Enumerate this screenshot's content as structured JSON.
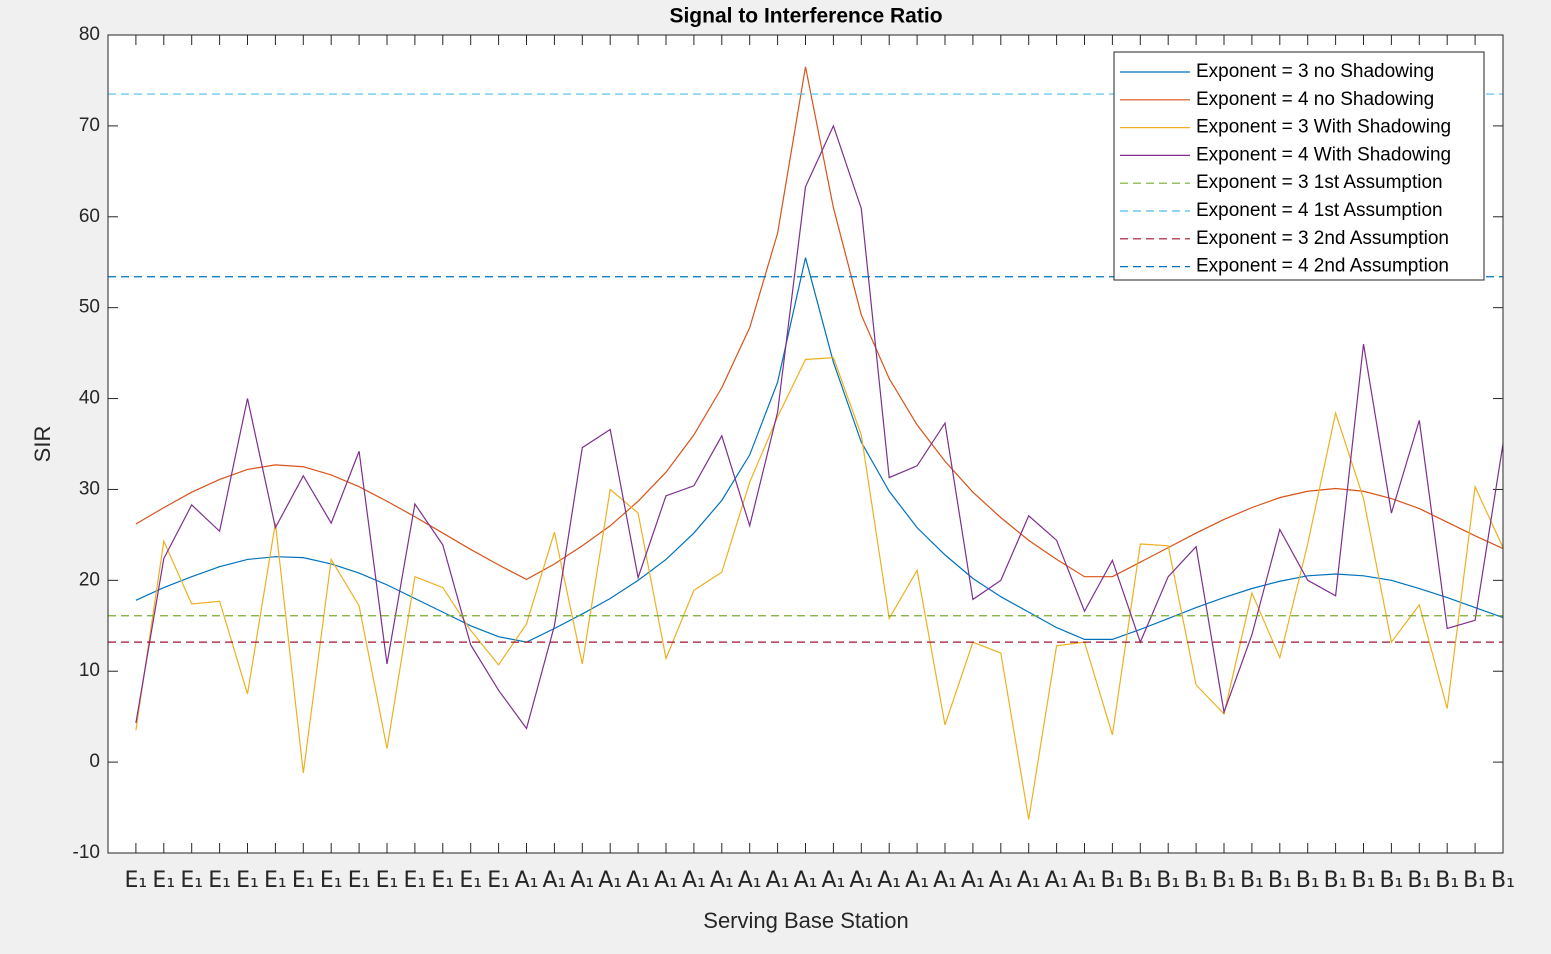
{
  "chart_data": {
    "type": "line",
    "title": "Signal to Interference Ratio",
    "xlabel": "Serving Base Station",
    "ylabel": "SIR",
    "categories": [
      "E₁",
      "E₁",
      "E₁",
      "E₁",
      "E₁",
      "E₁",
      "E₁",
      "E₁",
      "E₁",
      "E₁",
      "E₁",
      "E₁",
      "E₁",
      "E₁",
      "A₁",
      "A₁",
      "A₁",
      "A₁",
      "A₁",
      "A₁",
      "A₁",
      "A₁",
      "A₁",
      "A₁",
      "A₁",
      "A₁",
      "A₁",
      "A₁",
      "A₁",
      "A₁",
      "A₁",
      "A₁",
      "A₁",
      "A₁",
      "A₁",
      "B₁",
      "B₁",
      "B₁",
      "B₁",
      "B₁",
      "B₁",
      "B₁",
      "B₁",
      "B₁",
      "B₁",
      "B₁",
      "B₁",
      "B₁",
      "B₁",
      "B₁"
    ],
    "ylim": [
      -10,
      80
    ],
    "yticks": [
      -10,
      0,
      10,
      20,
      30,
      40,
      50,
      60,
      70,
      80
    ],
    "legend": "upper right",
    "series": [
      {
        "name": "Exponent = 3 no Shadowing",
        "color": "#0072BD",
        "values": [
          17.8,
          19.2,
          20.4,
          21.5,
          22.3,
          22.6,
          22.5,
          21.8,
          20.8,
          19.5,
          18.0,
          16.5,
          15.0,
          13.8,
          13.2,
          14.7,
          16.3,
          18.0,
          20.0,
          22.3,
          25.2,
          28.8,
          33.8,
          41.8,
          55.5,
          44.0,
          35.2,
          29.8,
          25.8,
          22.8,
          20.2,
          18.2,
          16.5,
          14.8,
          13.5,
          13.5,
          14.6,
          15.8,
          17.0,
          18.1,
          19.1,
          19.9,
          20.5,
          20.7,
          20.5,
          20.0,
          19.1,
          18.1,
          17.0,
          15.9
        ]
      },
      {
        "name": "Exponent = 4 no Shadowing",
        "color": "#D95319",
        "values": [
          26.2,
          28.0,
          29.7,
          31.1,
          32.2,
          32.7,
          32.5,
          31.6,
          30.3,
          28.7,
          27.0,
          25.2,
          23.4,
          21.7,
          20.1,
          21.8,
          23.8,
          26.0,
          28.7,
          31.9,
          36.0,
          41.2,
          47.8,
          58.2,
          76.5,
          61.0,
          49.2,
          42.2,
          37.1,
          33.1,
          29.7,
          26.9,
          24.4,
          22.3,
          20.4,
          20.4,
          22.0,
          23.6,
          25.2,
          26.7,
          28.0,
          29.1,
          29.8,
          30.1,
          29.8,
          29.0,
          27.9,
          26.4,
          24.9,
          23.5
        ]
      },
      {
        "name": "Exponent = 3 With Shadowing",
        "color": "#EDB120",
        "values": [
          3.5,
          24.3,
          17.4,
          17.7,
          7.5,
          26.3,
          -1.2,
          22.3,
          17.2,
          1.5,
          20.4,
          19.2,
          14.5,
          10.7,
          15.2,
          25.3,
          10.8,
          30.0,
          27.4,
          11.4,
          18.9,
          20.9,
          30.8,
          38.0,
          44.3,
          44.5,
          36.0,
          15.8,
          21.1,
          4.1,
          13.2,
          12.0,
          -6.3,
          12.8,
          13.2,
          3.0,
          24.0,
          23.8,
          8.5,
          5.3,
          18.6,
          11.5,
          24.0,
          38.4,
          29.0,
          13.2,
          17.3,
          5.9,
          30.3,
          23.6
        ]
      },
      {
        "name": "Exponent = 4 With Shadowing",
        "color": "#7E2F8E",
        "values": [
          4.3,
          22.4,
          28.3,
          25.4,
          40.0,
          25.8,
          31.5,
          26.3,
          34.2,
          10.8,
          28.4,
          23.9,
          12.9,
          7.9,
          3.7,
          15.0,
          34.6,
          36.6,
          20.3,
          29.3,
          30.4,
          35.9,
          26.0,
          38.5,
          63.3,
          70.0,
          60.9,
          31.3,
          32.6,
          37.3,
          17.9,
          20.0,
          27.1,
          24.4,
          16.6,
          22.2,
          13.2,
          20.4,
          23.7,
          5.5,
          14.0,
          25.6,
          20.0,
          18.3,
          46.0,
          27.4,
          37.6,
          14.7,
          15.6,
          35.0
        ]
      },
      {
        "name": "Exponent = 3 1st Assumption",
        "color": "#77AC30",
        "style": "dashed",
        "value": 16.1
      },
      {
        "name": "Exponent = 4 1st Assumption",
        "color": "#4DBEEE",
        "style": "dashed",
        "value": 73.5
      },
      {
        "name": "Exponent = 3 2nd Assumption",
        "color": "#A2142F",
        "style": "dashed",
        "value": 13.2
      },
      {
        "name": "Exponent = 4 2nd Assumption",
        "color": "#0072BD",
        "style": "dashed",
        "value": 53.4
      }
    ]
  }
}
